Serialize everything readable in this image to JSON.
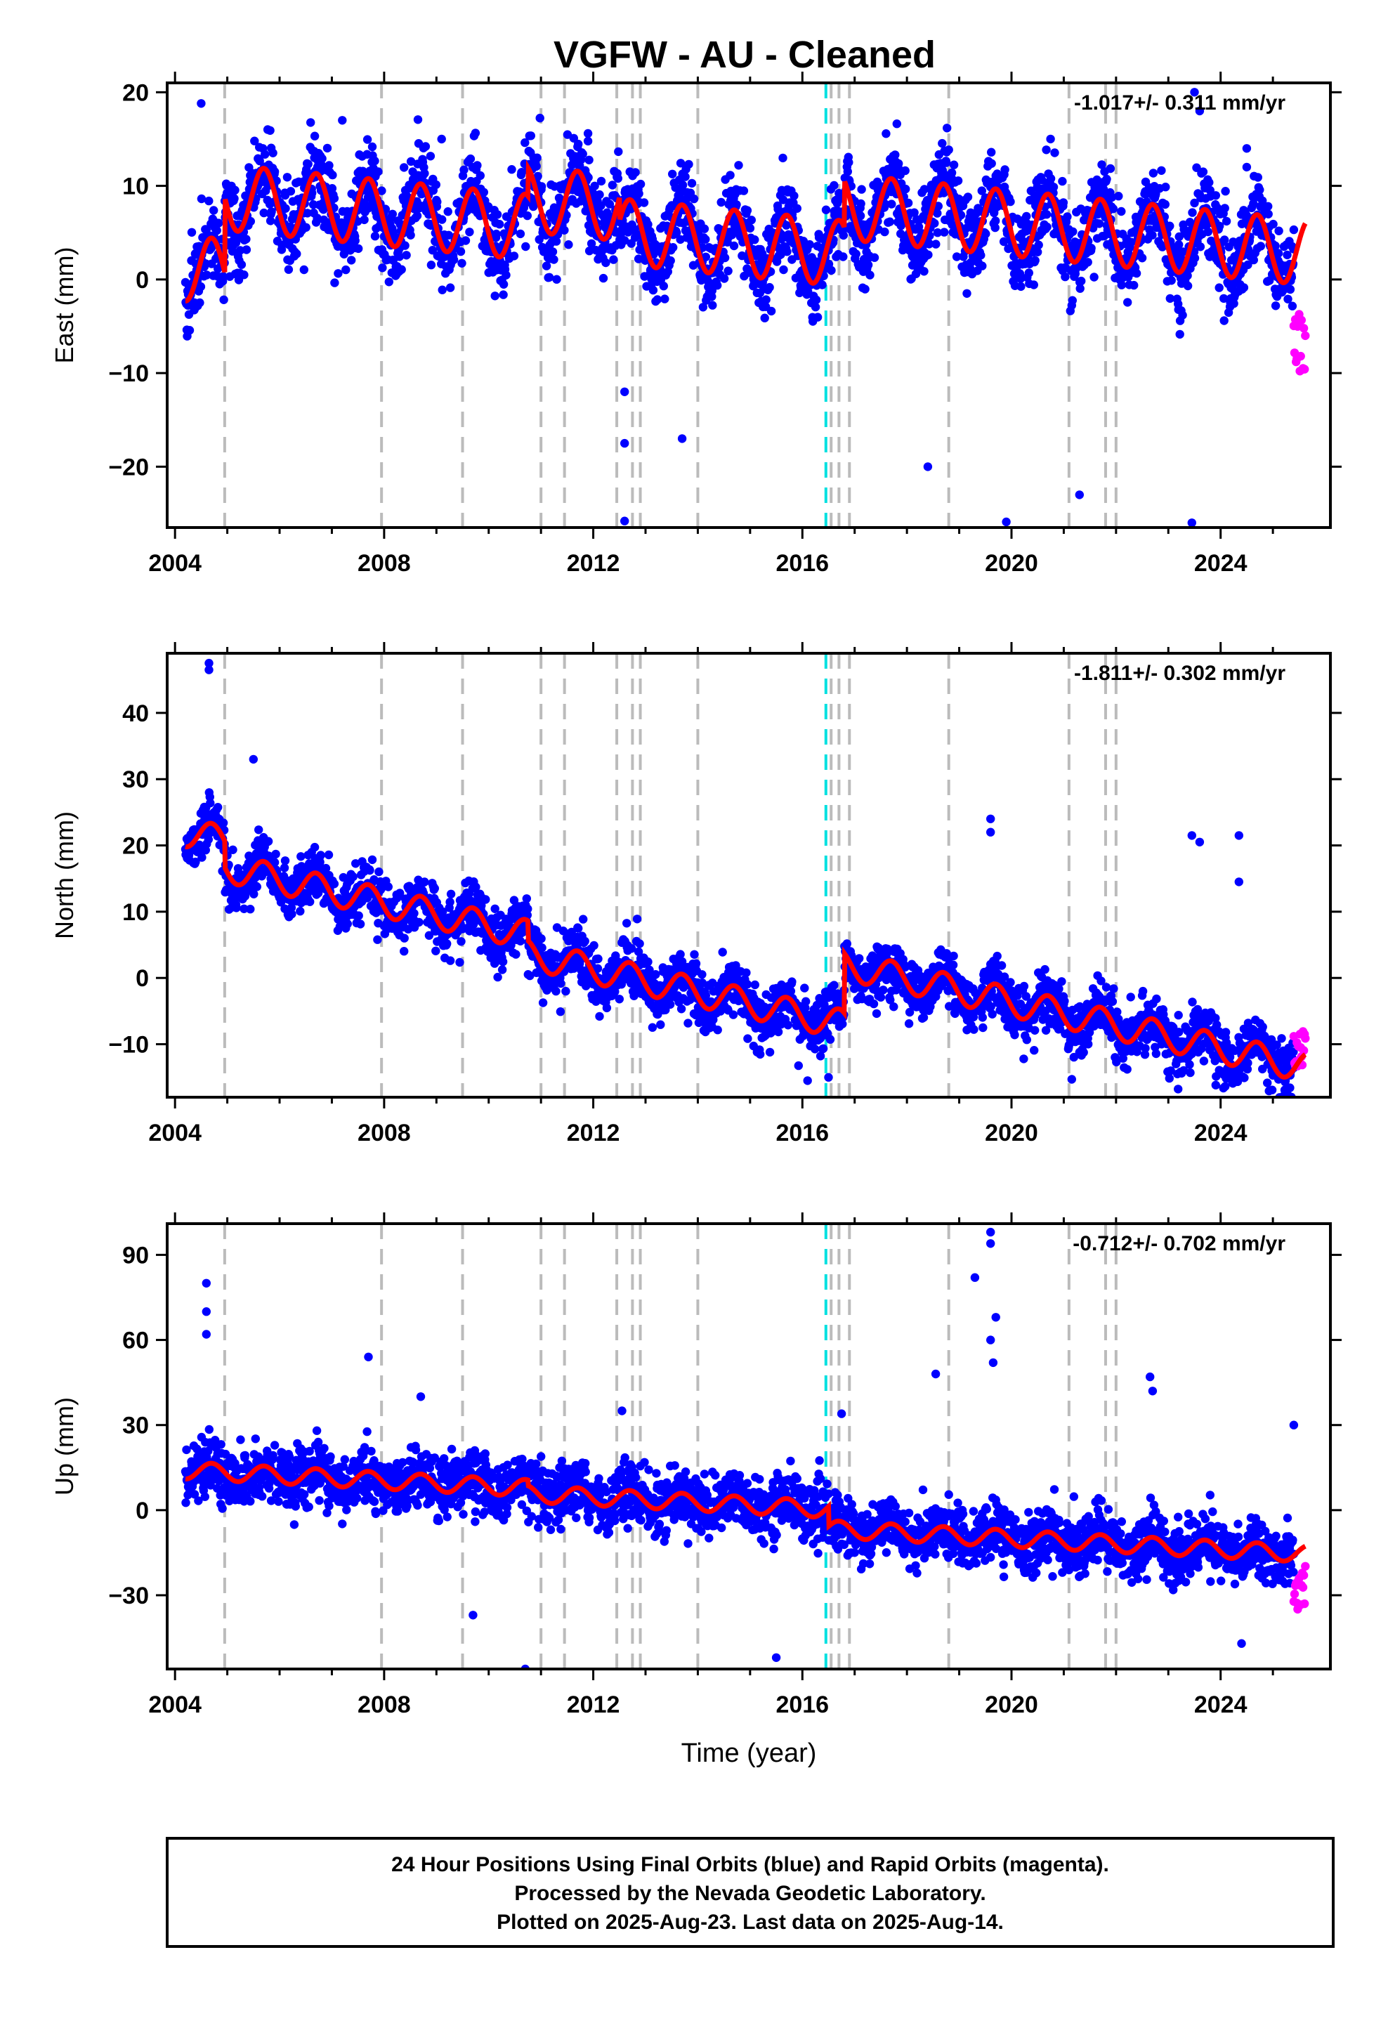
{
  "title": "VGFW  - AU - Cleaned",
  "footer": {
    "lines": [
      "24 Hour Positions Using Final Orbits (blue) and Rapid Orbits (magenta).",
      "Processed by the Nevada Geodetic Laboratory.",
      "Plotted on 2025-Aug-23. Last data on 2025-Aug-14."
    ]
  },
  "colors": {
    "final": "#0000ff",
    "rapid": "#ff00ff",
    "model": "#ff0000",
    "equipment_change": "#bbbbbb",
    "earthquake": "#00e0e0"
  },
  "chart_data": [
    {
      "type": "scatter",
      "component": "East",
      "ylabel": "East (mm)",
      "xlabel": "",
      "rate_label": "-1.017+/- 0.311 mm/yr",
      "xlim": [
        2003.85,
        2026.1
      ],
      "ylim": [
        -26.5,
        21
      ],
      "xticks": [
        2004,
        2008,
        2012,
        2016,
        2020,
        2024
      ],
      "yticks": [
        -20,
        -10,
        0,
        10,
        20
      ],
      "start": 2004.2,
      "end": 2025.62,
      "trend": {
        "intercept": 1.2,
        "rate": -0.55,
        "seasonal_amp": 3.5
      },
      "scatter_sigma": 2.2,
      "offsets": [
        [
          2004.95,
          8
        ],
        [
          2010.75,
          3
        ],
        [
          2012.5,
          -2.5
        ],
        [
          2016.8,
          5
        ]
      ],
      "outliers": [
        [
          2004.5,
          18.8
        ],
        [
          2012.6,
          -25.8
        ],
        [
          2012.6,
          -17.5
        ],
        [
          2012.6,
          -12
        ],
        [
          2013.7,
          -17
        ],
        [
          2018.4,
          -20
        ],
        [
          2019.9,
          -25.9
        ],
        [
          2021.3,
          -23
        ],
        [
          2023.45,
          -26
        ],
        [
          2023.5,
          20
        ],
        [
          2023.6,
          18
        ],
        [
          2023.9,
          8
        ],
        [
          2024.5,
          14
        ],
        [
          2024.5,
          12
        ],
        [
          2011.9,
          15.6
        ],
        [
          2007.2,
          17
        ],
        [
          2009.1,
          15
        ]
      ],
      "rapid": {
        "start": 2025.4,
        "end": 2025.62,
        "range": [
          -11,
          -3.5
        ]
      },
      "equipment_changes": [
        2004.95,
        2007.95,
        2009.5,
        2011.0,
        2011.45,
        2012.45,
        2012.75,
        2012.9,
        2014.0,
        2016.55,
        2016.7,
        2016.9,
        2018.8,
        2021.1,
        2021.8,
        2022.0
      ],
      "earthquakes": [
        2016.45
      ]
    },
    {
      "type": "scatter",
      "component": "North",
      "ylabel": "North (mm)",
      "xlabel": "",
      "rate_label": "-1.811+/- 0.302 mm/yr",
      "xlim": [
        2003.85,
        2026.1
      ],
      "ylim": [
        -18,
        49
      ],
      "xticks": [
        2004,
        2008,
        2012,
        2016,
        2020,
        2024
      ],
      "yticks": [
        -10,
        0,
        10,
        20,
        30,
        40
      ],
      "start": 2004.2,
      "end": 2025.62,
      "trend": {
        "intercept": 22,
        "rate": -1.75,
        "seasonal_amp": 2.2
      },
      "scatter_sigma": 2.0,
      "offsets": [
        [
          2004.95,
          -4
        ],
        [
          2010.75,
          -3
        ],
        [
          2016.8,
          9
        ]
      ],
      "outliers": [
        [
          2004.65,
          47.5
        ],
        [
          2004.65,
          46.5
        ],
        [
          2005.5,
          33
        ],
        [
          2019.6,
          24
        ],
        [
          2019.6,
          22
        ],
        [
          2023.45,
          21.5
        ],
        [
          2023.6,
          20.5
        ],
        [
          2024.35,
          21.5
        ],
        [
          2024.35,
          14.5
        ],
        [
          2016.1,
          -15.5
        ],
        [
          2016.5,
          -15
        ]
      ],
      "rapid": {
        "start": 2025.4,
        "end": 2025.62,
        "range": [
          -15,
          -8
        ]
      },
      "equipment_changes": [
        2004.95,
        2007.95,
        2009.5,
        2011.0,
        2011.45,
        2012.45,
        2012.75,
        2012.9,
        2014.0,
        2016.55,
        2016.7,
        2016.9,
        2018.8,
        2021.1,
        2021.8,
        2022.0
      ],
      "earthquakes": [
        2016.45
      ]
    },
    {
      "type": "scatter",
      "component": "Up",
      "ylabel": "Up (mm)",
      "xlabel": "Time (year)",
      "rate_label": "-0.712+/- 0.702 mm/yr",
      "xlim": [
        2003.85,
        2026.1
      ],
      "ylim": [
        -56,
        101
      ],
      "xticks": [
        2004,
        2008,
        2012,
        2016,
        2020,
        2024
      ],
      "yticks": [
        -30,
        0,
        30,
        60,
        90
      ],
      "start": 2004.2,
      "end": 2025.62,
      "trend": {
        "intercept": 14,
        "rate": -0.95,
        "seasonal_amp": 3.0
      },
      "scatter_sigma": 5.0,
      "offsets": [
        [
          2016.5,
          -7
        ],
        [
          2010.75,
          -2
        ]
      ],
      "outliers": [
        [
          2004.6,
          80
        ],
        [
          2004.6,
          70
        ],
        [
          2004.6,
          62
        ],
        [
          2007.7,
          54
        ],
        [
          2008.7,
          40
        ],
        [
          2010.7,
          -56
        ],
        [
          2015.5,
          -52
        ],
        [
          2009.7,
          -37
        ],
        [
          2018.55,
          48
        ],
        [
          2019.3,
          82
        ],
        [
          2019.6,
          98
        ],
        [
          2019.6,
          94
        ],
        [
          2019.7,
          68
        ],
        [
          2019.6,
          60
        ],
        [
          2019.65,
          52
        ],
        [
          2022.65,
          47
        ],
        [
          2022.7,
          42
        ],
        [
          2024.4,
          -47
        ],
        [
          2012.55,
          35
        ],
        [
          2016.75,
          34
        ],
        [
          2025.4,
          30
        ]
      ],
      "rapid": {
        "start": 2025.4,
        "end": 2025.62,
        "range": [
          -35,
          -18
        ]
      },
      "equipment_changes": [
        2004.95,
        2007.95,
        2009.5,
        2011.0,
        2011.45,
        2012.45,
        2012.75,
        2012.9,
        2014.0,
        2016.55,
        2016.7,
        2016.9,
        2018.8,
        2021.1,
        2021.8,
        2022.0
      ],
      "earthquakes": [
        2016.45
      ]
    }
  ]
}
